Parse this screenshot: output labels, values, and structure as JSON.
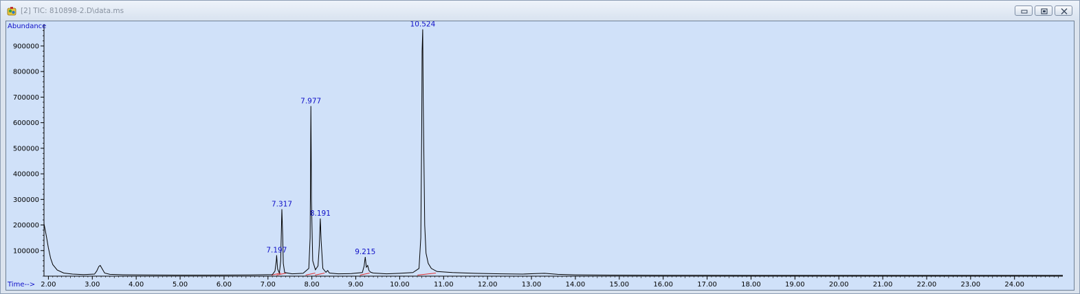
{
  "window": {
    "title": "[2] TIC: 810898-2.D\\data.ms",
    "app_icon": "chemstation-app-icon",
    "buttons": [
      {
        "name": "minimize-button",
        "icon": "minimize-icon"
      },
      {
        "name": "restore-button",
        "icon": "restore-icon"
      },
      {
        "name": "close-button",
        "icon": "close-icon"
      }
    ]
  },
  "chart_data": {
    "type": "line",
    "title": "",
    "ylabel": "Abundance",
    "xlabel": "Time-->",
    "xlim": [
      1.9,
      25.1
    ],
    "ylim": [
      0,
      975000
    ],
    "x_ticks": [
      2.0,
      3.0,
      4.0,
      5.0,
      6.0,
      7.0,
      8.0,
      9.0,
      10.0,
      11.0,
      12.0,
      13.0,
      14.0,
      15.0,
      16.0,
      17.0,
      18.0,
      19.0,
      20.0,
      21.0,
      22.0,
      23.0,
      24.0
    ],
    "x_tick_labels": [
      "2.00",
      "3.00",
      "4.00",
      "5.00",
      "6.00",
      "7.00",
      "8.00",
      "9.00",
      "10.00",
      "11.00",
      "12.00",
      "13.00",
      "14.00",
      "15.00",
      "16.00",
      "17.00",
      "18.00",
      "19.00",
      "20.00",
      "21.00",
      "22.00",
      "23.00",
      "24.00"
    ],
    "y_ticks": [
      100000,
      200000,
      300000,
      400000,
      500000,
      600000,
      700000,
      800000,
      900000
    ],
    "y_tick_labels": [
      "100000",
      "200000",
      "300000",
      "400000",
      "500000",
      "600000",
      "700000",
      "800000",
      "900000"
    ],
    "grid": false,
    "colors": {
      "background": "#d0e1f9",
      "trace": "#000000",
      "peak_label": "#1010c8",
      "axis_label": "#1010c8",
      "baseline": "#e03030"
    },
    "peaks": [
      {
        "rt": 7.197,
        "label": "7.197",
        "height": 82000
      },
      {
        "rt": 7.317,
        "label": "7.317",
        "height": 262000
      },
      {
        "rt": 7.977,
        "label": "7.977",
        "height": 665000
      },
      {
        "rt": 8.191,
        "label": "8.191",
        "height": 225000
      },
      {
        "rt": 9.215,
        "label": "9.215",
        "height": 75000
      },
      {
        "rt": 10.524,
        "label": "10.524",
        "height": 965000
      }
    ],
    "series": [
      {
        "x": [
          1.9,
          1.95,
          2.0,
          2.05,
          2.1,
          2.2,
          2.35,
          2.55,
          2.8,
          3.05,
          3.1,
          3.15,
          3.18,
          3.22,
          3.28,
          3.4,
          3.7,
          4.2,
          5.0,
          5.8,
          6.6,
          7.1,
          7.16,
          7.19,
          7.197,
          7.22,
          7.26,
          7.29,
          7.317,
          7.335,
          7.35,
          7.38,
          7.55,
          7.8,
          7.93,
          7.96,
          7.97,
          7.977,
          7.985,
          7.99,
          8.02,
          8.08,
          8.14,
          8.17,
          8.191,
          8.21,
          8.25,
          8.32,
          8.36,
          8.4,
          8.6,
          8.9,
          9.15,
          9.19,
          9.215,
          9.24,
          9.27,
          9.3,
          9.34,
          9.4,
          9.7,
          10.0,
          10.3,
          10.44,
          10.48,
          10.5,
          10.51,
          10.524,
          10.535,
          10.55,
          10.57,
          10.6,
          10.65,
          10.72,
          10.85,
          11.2,
          11.7,
          12.3,
          12.8,
          13.1,
          13.3,
          13.6,
          14.0,
          14.8,
          16.0,
          18.0,
          20.0,
          22.0,
          24.0,
          25.1
        ],
        "y": [
          205000,
          160000,
          110000,
          70000,
          45000,
          24000,
          12000,
          8000,
          6000,
          8000,
          20000,
          38000,
          42000,
          30000,
          12000,
          7000,
          5500,
          4500,
          4000,
          4000,
          4500,
          6000,
          20000,
          60000,
          82000,
          28000,
          12000,
          60000,
          262000,
          160000,
          50000,
          14000,
          9000,
          11000,
          30000,
          150000,
          390000,
          665000,
          480000,
          300000,
          60000,
          25000,
          40000,
          120000,
          225000,
          140000,
          30000,
          15000,
          22000,
          12000,
          9000,
          10000,
          14000,
          40000,
          75000,
          35000,
          42000,
          22000,
          15000,
          12000,
          9000,
          11000,
          14000,
          30000,
          150000,
          560000,
          880000,
          965000,
          700000,
          470000,
          200000,
          90000,
          50000,
          30000,
          18000,
          14000,
          11000,
          9000,
          8000,
          10000,
          11000,
          7000,
          5000,
          4000,
          3500,
          3000,
          3000,
          3000,
          3000,
          3000
        ]
      }
    ]
  }
}
